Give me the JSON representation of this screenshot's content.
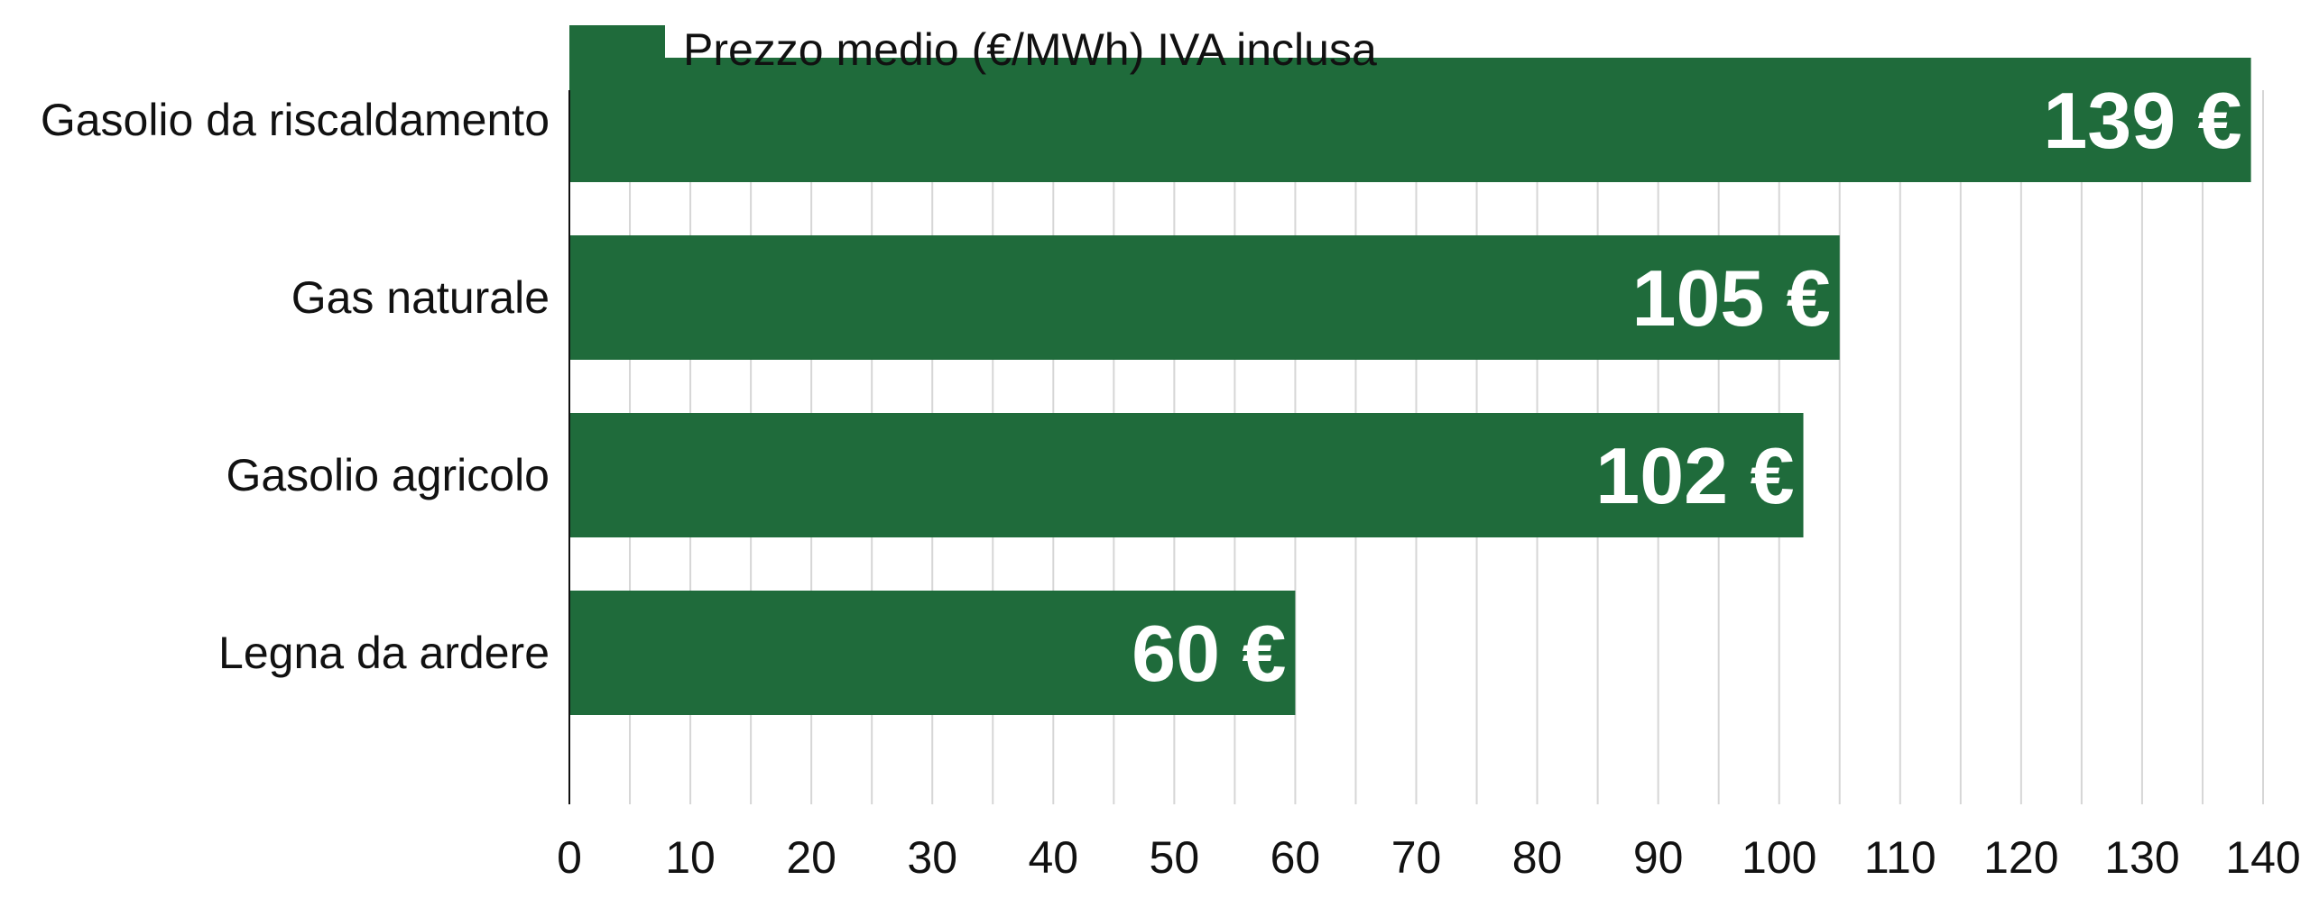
{
  "chart_data": {
    "type": "bar",
    "orientation": "horizontal",
    "categories": [
      "Gasolio da riscaldamento",
      "Gas naturale",
      "Gasolio agricolo",
      "Legna da ardere"
    ],
    "series": [
      {
        "name": "Prezzo medio (€/MWh) IVA inclusa",
        "values": [
          139,
          105,
          102,
          60
        ],
        "data_labels": [
          "139 €",
          "105 €",
          "102 €",
          "60 €"
        ],
        "color": "#1f6b3b"
      }
    ],
    "xlim": [
      0,
      140
    ],
    "x_ticks": [
      0,
      10,
      20,
      30,
      40,
      50,
      60,
      70,
      80,
      90,
      100,
      110,
      120,
      130,
      140
    ],
    "grid": "vertical",
    "legend_position": "top-left"
  }
}
